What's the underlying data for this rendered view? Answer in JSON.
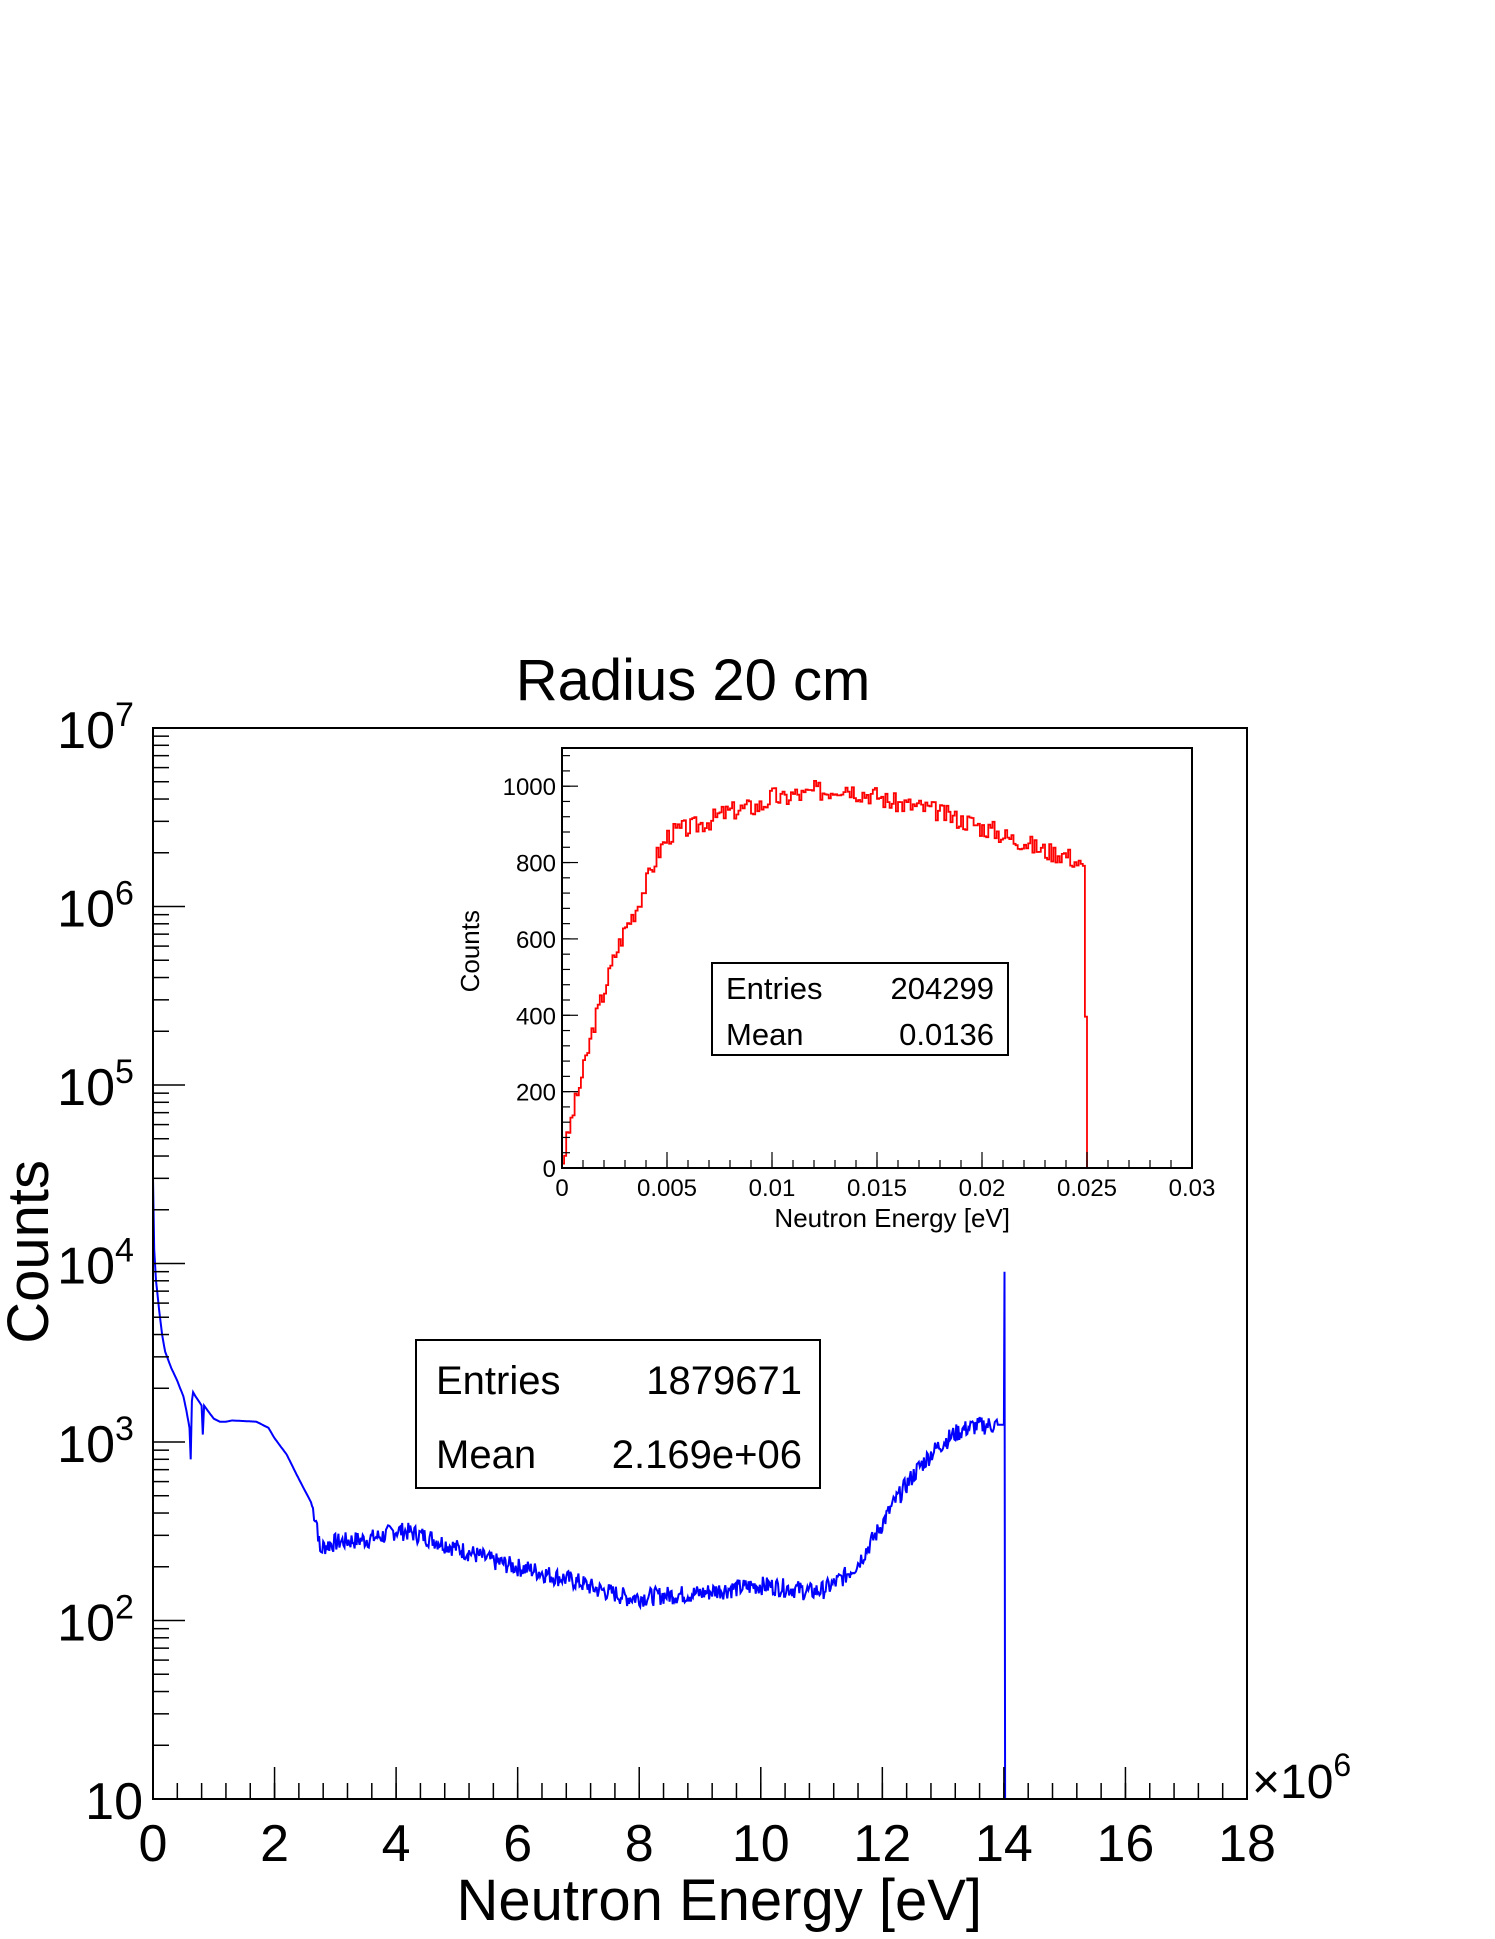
{
  "chart_data": [
    {
      "type": "line",
      "title": "Radius 20 cm",
      "xlabel": "Neutron Energy [eV]",
      "ylabel": "Counts",
      "x_multiplier_label": "×10",
      "x_multiplier_exponent": "6",
      "xlim": [
        0,
        18
      ],
      "ylim": [
        10,
        10000000
      ],
      "yscale": "log",
      "x_ticks": [
        {
          "value": 0,
          "label": "0"
        },
        {
          "value": 2,
          "label": "2"
        },
        {
          "value": 4,
          "label": "4"
        },
        {
          "value": 6,
          "label": "6"
        },
        {
          "value": 8,
          "label": "8"
        },
        {
          "value": 10,
          "label": "10"
        },
        {
          "value": 12,
          "label": "12"
        },
        {
          "value": 14,
          "label": "14"
        },
        {
          "value": 16,
          "label": "16"
        },
        {
          "value": 18,
          "label": "18"
        }
      ],
      "y_ticks": [
        {
          "value": 10,
          "base": "10",
          "exp": ""
        },
        {
          "value": 100,
          "base": "10",
          "exp": "2"
        },
        {
          "value": 1000,
          "base": "10",
          "exp": "3"
        },
        {
          "value": 10000,
          "base": "10",
          "exp": "4"
        },
        {
          "value": 100000,
          "base": "10",
          "exp": "5"
        },
        {
          "value": 1000000,
          "base": "10",
          "exp": "6"
        },
        {
          "value": 10000000,
          "base": "10",
          "exp": "7"
        }
      ],
      "series_color": "#0000ff",
      "series": [
        {
          "x": [
            0.0,
            0.02,
            0.05,
            0.1,
            0.15,
            0.2,
            0.3,
            0.4,
            0.5,
            0.55,
            0.6,
            0.62,
            0.64,
            0.66,
            0.7,
            0.75,
            0.8,
            0.82,
            0.84,
            0.9,
            1.0,
            1.1,
            1.2,
            1.3,
            1.5,
            1.7,
            1.9,
            2.0,
            2.2,
            2.4,
            2.6,
            2.7,
            2.75,
            2.8,
            3.0,
            3.2,
            3.5,
            3.8,
            4.0,
            4.2,
            4.5,
            4.8,
            5.0,
            5.3,
            5.6,
            6.0,
            6.3,
            6.6,
            7.0,
            7.3,
            7.6,
            7.8,
            8.0,
            8.3,
            8.6,
            9.0,
            9.3,
            9.6,
            10.0,
            10.3,
            10.6,
            10.8,
            11.0,
            11.2,
            11.4,
            11.6,
            11.8,
            12.0,
            12.2,
            12.4,
            12.6,
            12.8,
            13.0,
            13.2,
            13.4,
            13.6,
            13.8,
            13.95,
            14.0,
            14.01,
            14.02,
            14.03
          ],
          "values": [
            30000,
            12000,
            8000,
            5500,
            4000,
            3200,
            2600,
            2200,
            1800,
            1500,
            1200,
            800,
            1700,
            1900,
            1800,
            1700,
            1600,
            1100,
            1600,
            1500,
            1350,
            1300,
            1300,
            1320,
            1310,
            1300,
            1200,
            1050,
            850,
            620,
            460,
            350,
            240,
            260,
            275,
            280,
            285,
            300,
            320,
            315,
            295,
            270,
            255,
            235,
            215,
            200,
            190,
            178,
            165,
            150,
            142,
            135,
            135,
            138,
            140,
            142,
            148,
            152,
            158,
            155,
            150,
            145,
            148,
            160,
            180,
            210,
            270,
            350,
            460,
            580,
            720,
            860,
            1000,
            1120,
            1200,
            1240,
            1250,
            1250,
            1250,
            9000,
            10,
            10
          ]
        }
      ],
      "stats": {
        "entries_label": "Entries",
        "entries_value": "1879671",
        "mean_label": "Mean",
        "mean_value": "2.169e+06"
      }
    },
    {
      "type": "line",
      "title": "",
      "xlabel": "Neutron Energy [eV]",
      "ylabel": "Counts",
      "xlim": [
        0,
        0.03
      ],
      "ylim": [
        0,
        1100
      ],
      "x_ticks": [
        {
          "value": 0,
          "label": "0"
        },
        {
          "value": 0.005,
          "label": "0.005"
        },
        {
          "value": 0.01,
          "label": "0.01"
        },
        {
          "value": 0.015,
          "label": "0.015"
        },
        {
          "value": 0.02,
          "label": "0.02"
        },
        {
          "value": 0.025,
          "label": "0.025"
        },
        {
          "value": 0.03,
          "label": "0.03"
        }
      ],
      "y_ticks": [
        {
          "value": 0,
          "label": "0"
        },
        {
          "value": 200,
          "label": "200"
        },
        {
          "value": 400,
          "label": "400"
        },
        {
          "value": 600,
          "label": "600"
        },
        {
          "value": 800,
          "label": "800"
        },
        {
          "value": 1000,
          "label": "1000"
        }
      ],
      "series_color": "#ff0000",
      "series": [
        {
          "x": [
            0.0,
            0.0005,
            0.001,
            0.0015,
            0.002,
            0.0025,
            0.003,
            0.0035,
            0.004,
            0.0045,
            0.005,
            0.0055,
            0.006,
            0.0065,
            0.007,
            0.0075,
            0.008,
            0.0085,
            0.009,
            0.0095,
            0.01,
            0.0105,
            0.011,
            0.0115,
            0.012,
            0.0125,
            0.013,
            0.0135,
            0.014,
            0.0145,
            0.015,
            0.0155,
            0.016,
            0.0165,
            0.017,
            0.0175,
            0.018,
            0.0185,
            0.019,
            0.0195,
            0.02,
            0.0205,
            0.021,
            0.0215,
            0.022,
            0.0225,
            0.023,
            0.0235,
            0.024,
            0.0245,
            0.0248,
            0.025,
            0.0251
          ],
          "values": [
            20,
            150,
            260,
            380,
            470,
            560,
            630,
            680,
            750,
            820,
            870,
            885,
            890,
            900,
            910,
            925,
            935,
            940,
            945,
            950,
            975,
            965,
            980,
            975,
            990,
            985,
            995,
            1000,
            985,
            980,
            975,
            960,
            955,
            950,
            945,
            940,
            930,
            920,
            910,
            905,
            890,
            885,
            870,
            860,
            855,
            840,
            830,
            825,
            820,
            800,
            780,
            0,
            0
          ]
        }
      ],
      "stats": {
        "entries_label": "Entries",
        "entries_value": "204299",
        "mean_label": "Mean",
        "mean_value": "0.0136"
      }
    }
  ]
}
